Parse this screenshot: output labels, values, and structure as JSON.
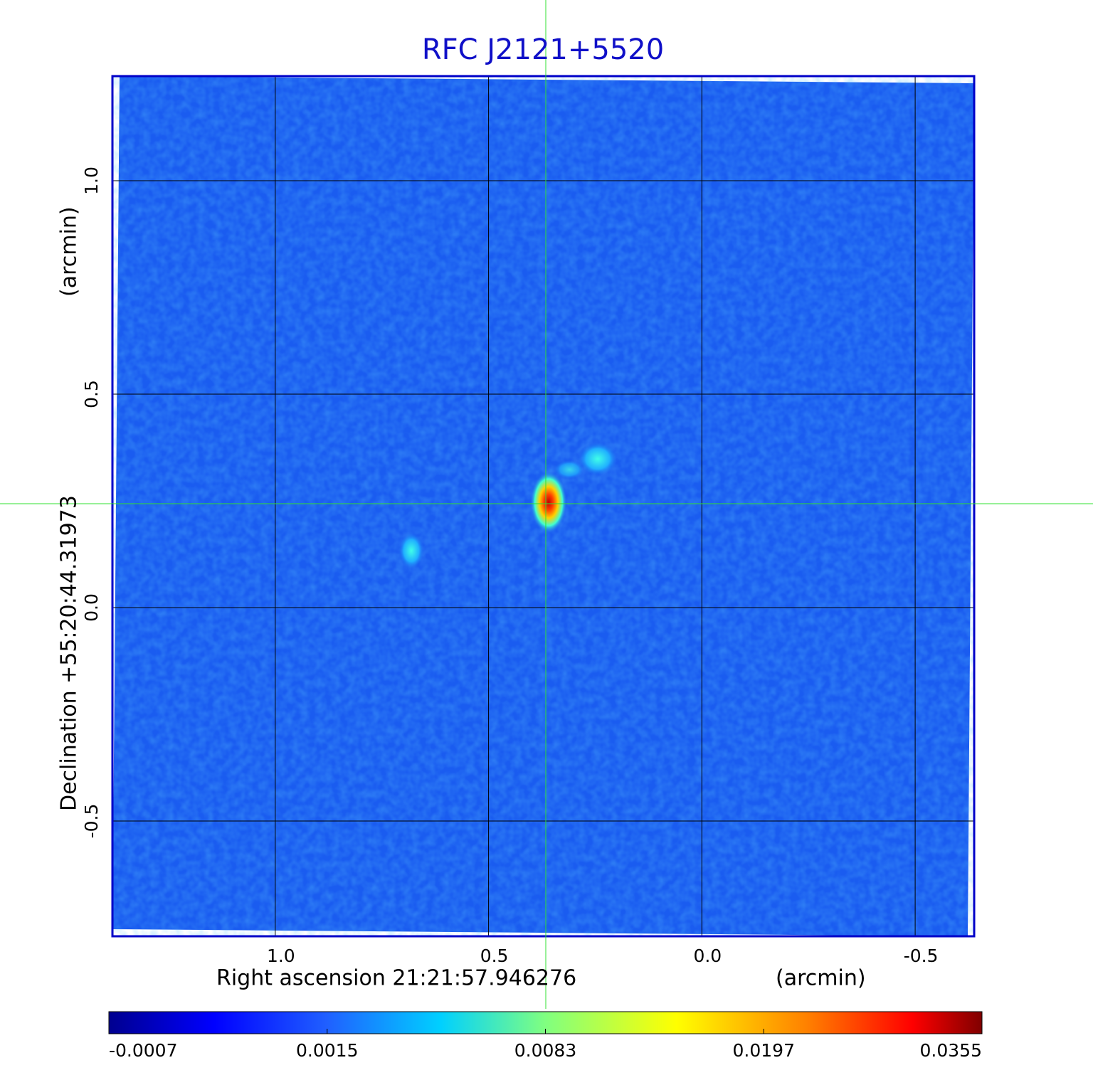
{
  "chart_data": {
    "type": "image",
    "title": "RFC J2121+5520",
    "x_label": "Right ascension  21:21:57.946276",
    "x_unit": "(arcmin)",
    "y_label": "Declination  +55:20:44.31973",
    "y_unit": "(arcmin)",
    "xlim": [
      1.3817,
      -0.6383
    ],
    "ylim": [
      -0.77,
      1.245
    ],
    "xticks": [
      {
        "value": 1,
        "label": "1.0"
      },
      0.5,
      {
        "value": 0,
        "label": "0.0"
      },
      -0.5
    ],
    "yticks": [
      -0.5,
      {
        "value": 0,
        "label": "0.0"
      },
      0.5,
      {
        "value": 1,
        "label": "1.0"
      }
    ],
    "grid": true,
    "colorbar": {
      "ticks": [
        -0.0007,
        0.0015,
        0.0083,
        0.0197,
        0.0355
      ]
    }
  }
}
